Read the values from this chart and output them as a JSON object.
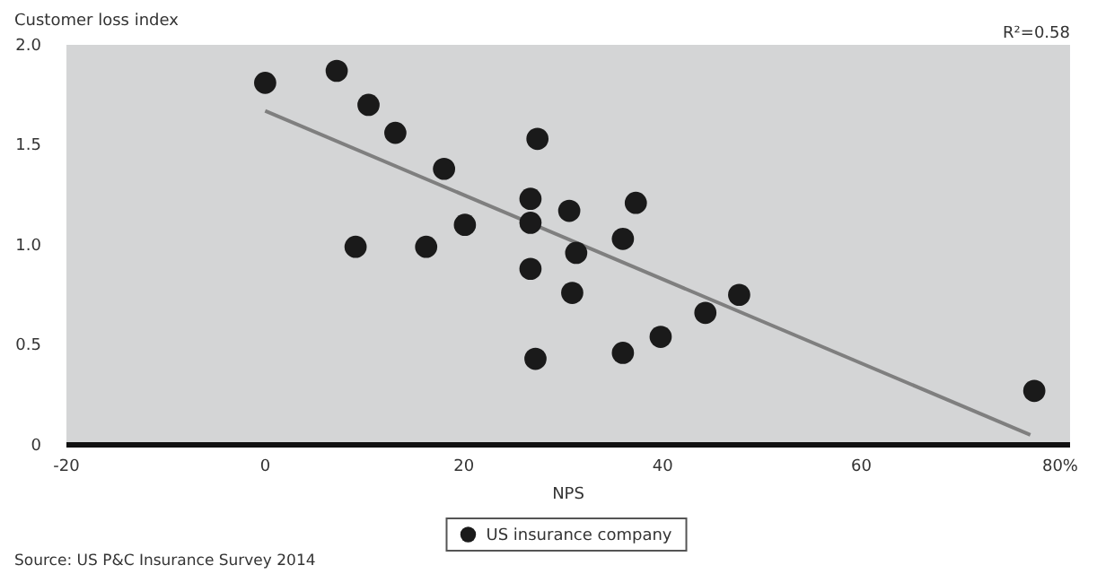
{
  "chart_data": {
    "type": "scatter",
    "xlabel": "NPS",
    "ylabel": "Customer loss index",
    "xlim": [
      -20,
      81
    ],
    "ylim": [
      0,
      2
    ],
    "xticks": [
      -20,
      0,
      20,
      40,
      60,
      {
        "value": 80,
        "label": "80%"
      }
    ],
    "yticks": [
      0,
      0.5,
      {
        "value": 1,
        "label": "1.0"
      },
      {
        "value": 1.5,
        "label": "1.5"
      },
      {
        "value": 2,
        "label": "2.0"
      }
    ],
    "grid": false,
    "legend": "bottom",
    "marker": "circle",
    "series": [
      {
        "name": "US insurance company",
        "color": "#1a1a1a",
        "x": [
          0,
          7.2,
          10.4,
          13.1,
          18.0,
          9.1,
          16.2,
          20.1,
          27.4,
          26.7,
          26.7,
          26.7,
          27.2,
          30.6,
          31.3,
          30.9,
          37.3,
          36.0,
          36.0,
          39.8,
          44.3,
          47.7,
          77.4
        ],
        "values": [
          1.81,
          1.87,
          1.7,
          1.56,
          1.38,
          0.99,
          0.99,
          1.1,
          1.53,
          1.23,
          1.11,
          0.88,
          0.43,
          1.17,
          0.96,
          0.76,
          1.21,
          1.03,
          0.46,
          0.54,
          0.66,
          0.75,
          0.27
        ]
      },
      {
        "type": "line",
        "color": "#7f7f7f",
        "marker": "none",
        "line_style": "solid",
        "x": [
          0,
          77
        ],
        "values": [
          1.67,
          0.05
        ]
      }
    ],
    "annotations": [
      "R²=0.58",
      "Source: US P&C Insurance Survey 2014"
    ]
  }
}
